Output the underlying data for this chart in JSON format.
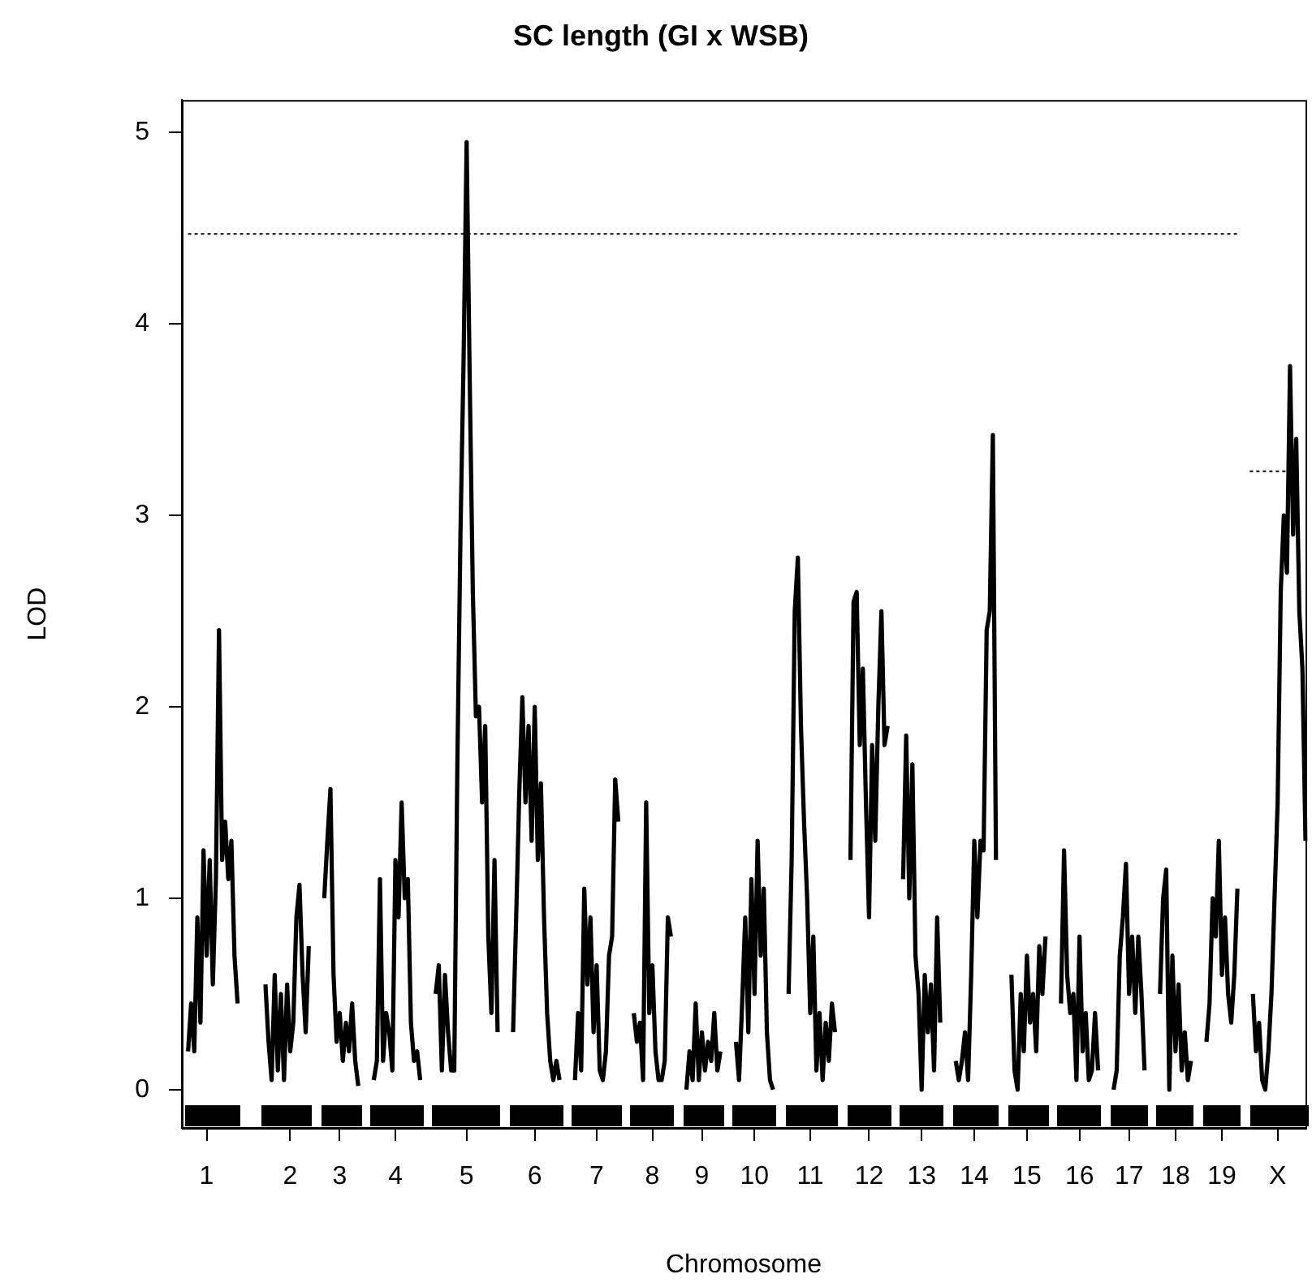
{
  "chart_data": {
    "type": "line",
    "title": "SC length (GI x WSB)",
    "xlabel": "Chromosome",
    "ylabel": "LOD",
    "ylim": [
      -0.2,
      5.17
    ],
    "yticks": [
      0,
      1,
      2,
      3,
      4,
      5
    ],
    "grid": false,
    "legend": false,
    "marker": "none",
    "categories": [
      null,
      null,
      null,
      null,
      null,
      null,
      null,
      null,
      "1",
      null,
      null,
      null,
      null,
      null,
      null,
      null,
      null,
      null,
      null,
      null,
      null,
      null,
      null,
      null,
      null,
      null,
      null,
      null,
      null,
      null,
      null,
      null,
      null,
      null,
      null,
      "2",
      null,
      null,
      null,
      null,
      null,
      null,
      null,
      null,
      null,
      null,
      null,
      null,
      null,
      null,
      null,
      "3",
      null,
      null,
      null,
      null,
      null,
      null,
      null,
      null,
      null,
      null,
      null,
      null,
      null,
      null,
      null,
      null,
      null,
      "4",
      null,
      null,
      null,
      null,
      null,
      null,
      null,
      null,
      null,
      null,
      null,
      null,
      null,
      null,
      null,
      null,
      null,
      null,
      null,
      null,
      null,
      null,
      "5",
      null,
      null,
      null,
      null,
      null,
      null,
      null,
      null,
      null,
      null,
      null,
      null,
      null,
      null,
      null,
      null,
      null,
      null,
      null,
      null,
      null,
      "6",
      null,
      null,
      null,
      null,
      null,
      null,
      null,
      null,
      null,
      null,
      null,
      null,
      null,
      null,
      null,
      null,
      null,
      null,
      null,
      "7",
      null,
      null,
      null,
      null,
      null,
      null,
      null,
      null,
      null,
      null,
      null,
      null,
      null,
      null,
      null,
      null,
      null,
      "8",
      null,
      null,
      null,
      null,
      null,
      null,
      null,
      null,
      null,
      null,
      null,
      null,
      null,
      null,
      null,
      "9",
      null,
      null,
      null,
      null,
      null,
      null,
      null,
      null,
      null,
      null,
      null,
      null,
      null,
      null,
      null,
      null,
      "10",
      null,
      null,
      null,
      null,
      null,
      null,
      null,
      null,
      null,
      null,
      null,
      null,
      null,
      null,
      null,
      null,
      null,
      "11",
      null,
      null,
      null,
      null,
      null,
      null,
      null,
      null,
      null,
      null,
      null,
      null,
      null,
      null,
      null,
      null,
      null,
      null,
      "12",
      null,
      null,
      null,
      null,
      null,
      null,
      null,
      null,
      null,
      null,
      null,
      null,
      null,
      null,
      null,
      null,
      "13",
      null,
      null,
      null,
      null,
      null,
      null,
      null,
      null,
      null,
      null,
      null,
      null,
      null,
      null,
      null,
      null,
      "14",
      null,
      null,
      null,
      null,
      null,
      null,
      null,
      null,
      null,
      null,
      null,
      null,
      null,
      null,
      null,
      null,
      "15",
      null,
      null,
      null,
      null,
      null,
      null,
      null,
      null,
      null,
      null,
      null,
      null,
      null,
      null,
      null,
      null,
      "16",
      null,
      null,
      null,
      null,
      null,
      null,
      null,
      null,
      null,
      null,
      null,
      null,
      null,
      null,
      null,
      "17",
      null,
      null,
      null,
      null,
      null,
      null,
      null,
      null,
      null,
      null,
      null,
      null,
      null,
      null,
      "18",
      null,
      null,
      null,
      null,
      null,
      null,
      null,
      null,
      null,
      null,
      null,
      null,
      null,
      null,
      "19",
      null,
      null,
      null,
      null,
      null,
      null,
      null,
      null,
      null,
      null,
      null,
      null,
      null,
      null,
      null,
      null,
      null,
      "X",
      null,
      null,
      null,
      null,
      null,
      null,
      null,
      null,
      null
    ],
    "series": [
      {
        "color": "#000000",
        "values": [
          null,
          null,
          0.2,
          0.45,
          0.2,
          0.9,
          0.35,
          1.25,
          0.7,
          1.2,
          0.55,
          1.1,
          2.4,
          1.2,
          1.4,
          1.1,
          1.3,
          0.7,
          0.45,
          null,
          null,
          null,
          null,
          null,
          null,
          null,
          null,
          0.55,
          0.25,
          0.05,
          0.6,
          0.1,
          0.5,
          0.05,
          0.55,
          0.2,
          0.35,
          0.9,
          1.07,
          0.6,
          0.3,
          0.75,
          null,
          null,
          null,
          null,
          1.0,
          1.3,
          1.57,
          0.6,
          0.25,
          0.4,
          0.15,
          0.35,
          0.2,
          0.45,
          0.15,
          0.02,
          null,
          null,
          null,
          null,
          0.05,
          0.15,
          1.1,
          0.15,
          0.4,
          0.3,
          0.1,
          1.2,
          0.9,
          1.5,
          1.0,
          1.1,
          0.35,
          0.15,
          0.2,
          0.05,
          null,
          null,
          null,
          null,
          0.5,
          0.65,
          0.1,
          0.6,
          0.3,
          0.1,
          0.1,
          1.7,
          2.9,
          3.8,
          4.95,
          3.7,
          2.6,
          1.95,
          2.0,
          1.5,
          1.9,
          0.8,
          0.4,
          1.2,
          0.3,
          null,
          null,
          null,
          null,
          0.3,
          0.9,
          1.55,
          2.05,
          1.5,
          1.9,
          1.3,
          2.0,
          1.2,
          1.6,
          0.9,
          0.4,
          0.15,
          0.05,
          0.15,
          0.05,
          null,
          null,
          null,
          null,
          0.05,
          0.4,
          0.1,
          1.05,
          0.55,
          0.9,
          0.3,
          0.65,
          0.1,
          0.05,
          0.2,
          0.7,
          0.8,
          1.62,
          1.4,
          null,
          null,
          null,
          null,
          0.4,
          0.25,
          0.35,
          0.05,
          1.5,
          0.4,
          0.65,
          0.2,
          0.05,
          0.05,
          0.15,
          0.9,
          0.8,
          null,
          null,
          null,
          null,
          0.0,
          0.2,
          0.05,
          0.45,
          0.05,
          0.3,
          0.1,
          0.25,
          0.15,
          0.4,
          0.1,
          0.2,
          null,
          null,
          null,
          null,
          0.25,
          0.05,
          0.45,
          0.9,
          0.3,
          1.1,
          0.5,
          1.3,
          0.7,
          1.05,
          0.3,
          0.05,
          0.0,
          null,
          null,
          null,
          null,
          0.5,
          1.2,
          2.5,
          2.78,
          1.9,
          1.4,
          1.0,
          0.4,
          0.8,
          0.1,
          0.4,
          0.05,
          0.35,
          0.15,
          0.45,
          0.3,
          null,
          null,
          null,
          null,
          1.2,
          2.55,
          2.6,
          1.8,
          2.2,
          1.5,
          0.9,
          1.8,
          1.3,
          2.0,
          2.5,
          1.8,
          1.9,
          null,
          null,
          null,
          null,
          1.1,
          1.85,
          1.0,
          1.7,
          0.7,
          0.5,
          0.0,
          0.6,
          0.3,
          0.55,
          0.1,
          0.9,
          0.35,
          null,
          null,
          null,
          null,
          0.15,
          0.05,
          0.15,
          0.3,
          0.05,
          0.6,
          1.3,
          0.9,
          1.3,
          1.25,
          2.4,
          2.5,
          3.42,
          1.2,
          null,
          null,
          null,
          null,
          0.6,
          0.1,
          0.0,
          0.5,
          0.2,
          0.7,
          0.35,
          0.5,
          0.2,
          0.75,
          0.5,
          0.8,
          null,
          null,
          null,
          null,
          0.45,
          1.25,
          0.6,
          0.4,
          0.5,
          0.05,
          0.8,
          0.2,
          0.4,
          0.05,
          0.1,
          0.4,
          0.1,
          null,
          null,
          null,
          null,
          0.0,
          0.1,
          0.7,
          0.9,
          1.18,
          0.5,
          0.8,
          0.4,
          0.8,
          0.5,
          0.1,
          null,
          null,
          null,
          null,
          0.5,
          1.0,
          1.15,
          0.0,
          0.7,
          0.2,
          0.55,
          0.1,
          0.3,
          0.05,
          0.15,
          null,
          null,
          null,
          null,
          0.25,
          0.45,
          1.0,
          0.8,
          1.3,
          0.6,
          0.9,
          0.5,
          0.35,
          0.6,
          1.05,
          null,
          null,
          null,
          null,
          0.5,
          0.2,
          0.35,
          0.05,
          0.0,
          0.2,
          0.5,
          1.0,
          1.5,
          2.6,
          3.0,
          2.7,
          3.78,
          2.9,
          3.4,
          2.5,
          2.2,
          1.3
        ]
      },
      {
        "type": "line",
        "line_style": "dotted",
        "color": "#000000",
        "values": [
          null,
          null,
          4.47,
          4.47,
          4.47,
          4.47,
          4.47,
          4.47,
          4.47,
          4.47,
          4.47,
          4.47,
          4.47,
          4.47,
          4.47,
          4.47,
          4.47,
          4.47,
          4.47,
          4.47,
          4.47,
          4.47,
          4.47,
          4.47,
          4.47,
          4.47,
          4.47,
          4.47,
          4.47,
          4.47,
          4.47,
          4.47,
          4.47,
          4.47,
          4.47,
          4.47,
          4.47,
          4.47,
          4.47,
          4.47,
          4.47,
          4.47,
          4.47,
          4.47,
          4.47,
          4.47,
          4.47,
          4.47,
          4.47,
          4.47,
          4.47,
          4.47,
          4.47,
          4.47,
          4.47,
          4.47,
          4.47,
          4.47,
          4.47,
          4.47,
          4.47,
          4.47,
          4.47,
          4.47,
          4.47,
          4.47,
          4.47,
          4.47,
          4.47,
          4.47,
          4.47,
          4.47,
          4.47,
          4.47,
          4.47,
          4.47,
          4.47,
          4.47,
          4.47,
          4.47,
          4.47,
          4.47,
          4.47,
          4.47,
          4.47,
          4.47,
          4.47,
          4.47,
          4.47,
          4.47,
          4.47,
          4.47,
          4.47,
          4.47,
          4.47,
          4.47,
          4.47,
          4.47,
          4.47,
          4.47,
          4.47,
          4.47,
          4.47,
          4.47,
          4.47,
          4.47,
          4.47,
          4.47,
          4.47,
          4.47,
          4.47,
          4.47,
          4.47,
          4.47,
          4.47,
          4.47,
          4.47,
          4.47,
          4.47,
          4.47,
          4.47,
          4.47,
          4.47,
          4.47,
          4.47,
          4.47,
          4.47,
          4.47,
          4.47,
          4.47,
          4.47,
          4.47,
          4.47,
          4.47,
          4.47,
          4.47,
          4.47,
          4.47,
          4.47,
          4.47,
          4.47,
          4.47,
          4.47,
          4.47,
          4.47,
          4.47,
          4.47,
          4.47,
          4.47,
          4.47,
          4.47,
          4.47,
          4.47,
          4.47,
          4.47,
          4.47,
          4.47,
          4.47,
          4.47,
          4.47,
          4.47,
          4.47,
          4.47,
          4.47,
          4.47,
          4.47,
          4.47,
          4.47,
          4.47,
          4.47,
          4.47,
          4.47,
          4.47,
          4.47,
          4.47,
          4.47,
          4.47,
          4.47,
          4.47,
          4.47,
          4.47,
          4.47,
          4.47,
          4.47,
          4.47,
          4.47,
          4.47,
          4.47,
          4.47,
          4.47,
          4.47,
          4.47,
          4.47,
          4.47,
          4.47,
          4.47,
          4.47,
          4.47,
          4.47,
          4.47,
          4.47,
          4.47,
          4.47,
          4.47,
          4.47,
          4.47,
          4.47,
          4.47,
          4.47,
          4.47,
          4.47,
          4.47,
          4.47,
          4.47,
          4.47,
          4.47,
          4.47,
          4.47,
          4.47,
          4.47,
          4.47,
          4.47,
          4.47,
          4.47,
          4.47,
          4.47,
          4.47,
          4.47,
          4.47,
          4.47,
          4.47,
          4.47,
          4.47,
          4.47,
          4.47,
          4.47,
          4.47,
          4.47,
          4.47,
          4.47,
          4.47,
          4.47,
          4.47,
          4.47,
          4.47,
          4.47,
          4.47,
          4.47,
          4.47,
          4.47,
          4.47,
          4.47,
          4.47,
          4.47,
          4.47,
          4.47,
          4.47,
          4.47,
          4.47,
          4.47,
          4.47,
          4.47,
          4.47,
          4.47,
          4.47,
          4.47,
          4.47,
          4.47,
          4.47,
          4.47,
          4.47,
          4.47,
          4.47,
          4.47,
          4.47,
          4.47,
          4.47,
          4.47,
          4.47,
          4.47,
          4.47,
          4.47,
          4.47,
          4.47,
          4.47,
          4.47,
          4.47,
          4.47,
          4.47,
          4.47,
          4.47,
          4.47,
          4.47,
          4.47,
          4.47,
          4.47,
          4.47,
          4.47,
          4.47,
          4.47,
          4.47,
          4.47,
          4.47,
          4.47,
          4.47,
          4.47,
          4.47,
          4.47,
          4.47,
          4.47,
          4.47,
          4.47,
          4.47,
          4.47,
          4.47,
          4.47,
          4.47,
          4.47,
          4.47,
          4.47,
          4.47,
          4.47,
          4.47,
          4.47,
          4.47,
          4.47,
          4.47,
          4.47,
          4.47,
          4.47,
          4.47,
          4.47,
          4.47,
          4.47,
          4.47,
          4.47,
          4.47,
          4.47,
          4.47,
          4.47,
          4.47,
          4.47,
          null,
          null,
          null,
          null,
          null,
          null,
          null,
          null,
          null,
          null,
          null,
          null,
          null,
          null,
          null,
          null,
          null,
          null,
          null,
          null,
          null,
          null
        ]
      },
      {
        "type": "line",
        "line_style": "dotted",
        "color": "#000000",
        "values": [
          null,
          null,
          null,
          null,
          null,
          null,
          null,
          null,
          null,
          null,
          null,
          null,
          null,
          null,
          null,
          null,
          null,
          null,
          null,
          null,
          null,
          null,
          null,
          null,
          null,
          null,
          null,
          null,
          null,
          null,
          null,
          null,
          null,
          null,
          null,
          null,
          null,
          null,
          null,
          null,
          null,
          null,
          null,
          null,
          null,
          null,
          null,
          null,
          null,
          null,
          null,
          null,
          null,
          null,
          null,
          null,
          null,
          null,
          null,
          null,
          null,
          null,
          null,
          null,
          null,
          null,
          null,
          null,
          null,
          null,
          null,
          null,
          null,
          null,
          null,
          null,
          null,
          null,
          null,
          null,
          null,
          null,
          null,
          null,
          null,
          null,
          null,
          null,
          null,
          null,
          null,
          null,
          null,
          null,
          null,
          null,
          null,
          null,
          null,
          null,
          null,
          null,
          null,
          null,
          null,
          null,
          null,
          null,
          null,
          null,
          null,
          null,
          null,
          null,
          null,
          null,
          null,
          null,
          null,
          null,
          null,
          null,
          null,
          null,
          null,
          null,
          null,
          null,
          null,
          null,
          null,
          null,
          null,
          null,
          null,
          null,
          null,
          null,
          null,
          null,
          null,
          null,
          null,
          null,
          null,
          null,
          null,
          null,
          null,
          null,
          null,
          null,
          null,
          null,
          null,
          null,
          null,
          null,
          null,
          null,
          null,
          null,
          null,
          null,
          null,
          null,
          null,
          null,
          null,
          null,
          null,
          null,
          null,
          null,
          null,
          null,
          null,
          null,
          null,
          null,
          null,
          null,
          null,
          null,
          null,
          null,
          null,
          null,
          null,
          null,
          null,
          null,
          null,
          null,
          null,
          null,
          null,
          null,
          null,
          null,
          null,
          null,
          null,
          null,
          null,
          null,
          null,
          null,
          null,
          null,
          null,
          null,
          null,
          null,
          null,
          null,
          null,
          null,
          null,
          null,
          null,
          null,
          null,
          null,
          null,
          null,
          null,
          null,
          null,
          null,
          null,
          null,
          null,
          null,
          null,
          null,
          null,
          null,
          null,
          null,
          null,
          null,
          null,
          null,
          null,
          null,
          null,
          null,
          null,
          null,
          null,
          null,
          null,
          null,
          null,
          null,
          null,
          null,
          null,
          null,
          null,
          null,
          null,
          null,
          null,
          null,
          null,
          null,
          null,
          null,
          null,
          null,
          null,
          null,
          null,
          null,
          null,
          null,
          null,
          null,
          null,
          null,
          null,
          null,
          null,
          null,
          null,
          null,
          null,
          null,
          null,
          null,
          null,
          null,
          null,
          null,
          null,
          null,
          null,
          null,
          null,
          null,
          null,
          null,
          null,
          null,
          null,
          null,
          null,
          null,
          null,
          null,
          null,
          null,
          null,
          null,
          null,
          null,
          null,
          null,
          null,
          null,
          null,
          null,
          null,
          null,
          null,
          null,
          null,
          null,
          null,
          null,
          null,
          null,
          null,
          null,
          null,
          null,
          null,
          null,
          null,
          null,
          null,
          null,
          null,
          3.23,
          3.23,
          3.23,
          3.23,
          3.23,
          3.23,
          3.23,
          3.23,
          3.23,
          3.23,
          3.23,
          3.23,
          3.23,
          3.23,
          null,
          null,
          null,
          null,
          null
        ]
      }
    ]
  }
}
